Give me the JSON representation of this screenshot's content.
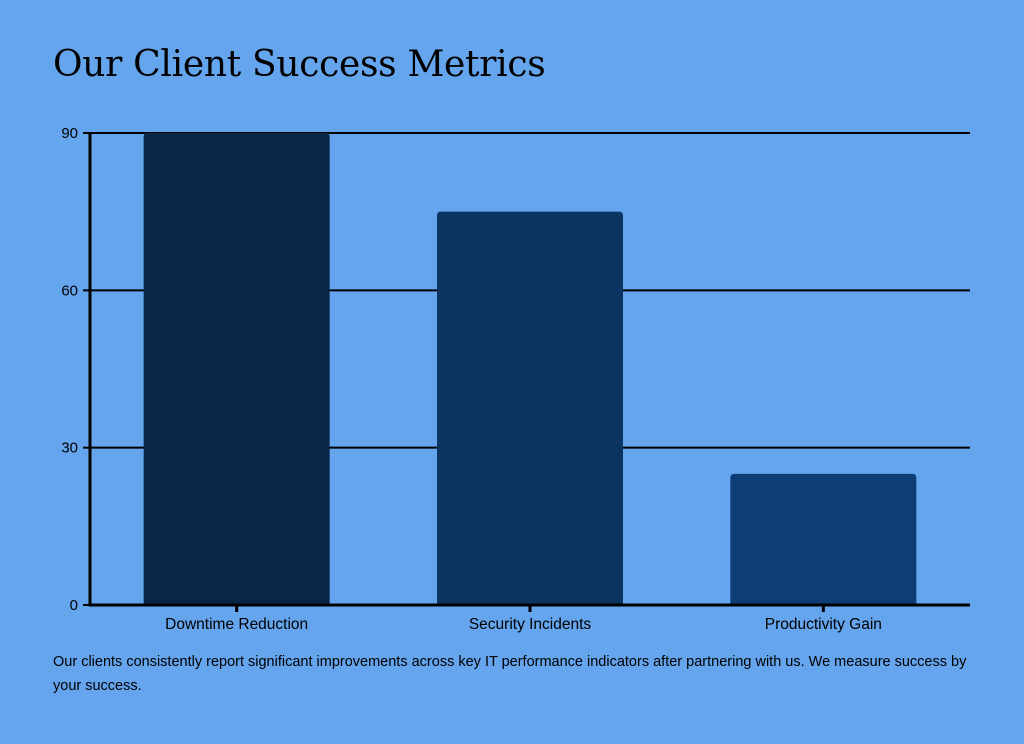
{
  "chart_data": {
    "type": "bar",
    "title": "Our Client Success Metrics",
    "categories": [
      "Downtime Reduction",
      "Security Incidents",
      "Productivity Gain"
    ],
    "values": [
      90,
      75,
      25
    ],
    "bar_colors": [
      "#0a2647",
      "#0b3460",
      "#0e3d75"
    ],
    "ylim": [
      0,
      90
    ],
    "yticks": [
      0,
      30,
      60,
      90
    ],
    "xlabel": "",
    "ylabel": "",
    "grid": true,
    "legend": false
  },
  "caption": "Our clients consistently report significant improvements across key IT performance indicators after partnering with us. We measure success by your success.",
  "colors": {
    "background": "#64a5ee",
    "axis": "#000000",
    "text": "#000000"
  }
}
